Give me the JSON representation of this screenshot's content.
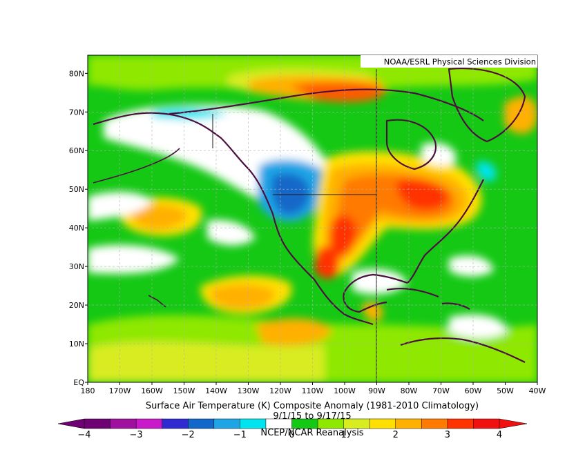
{
  "credit": "NOAA/ESRL Physical Sciences Division",
  "title_line1": "Surface Air Temperature (K) Composite Anomaly (1981-2010 Climatology)",
  "title_line2": "9/1/15 to 9/17/15",
  "title_line3": "NCEP/NCAR Reanalysis",
  "lat_ticks": [
    "80N",
    "70N",
    "60N",
    "50N",
    "40N",
    "30N",
    "20N",
    "10N",
    "EQ"
  ],
  "lon_ticks": [
    "180",
    "170W",
    "160W",
    "150W",
    "140W",
    "130W",
    "120W",
    "110W",
    "100W",
    "90W",
    "80W",
    "70W",
    "60W",
    "50W",
    "40W"
  ],
  "colorbar": {
    "colors": [
      "#6e0073",
      "#9f109f",
      "#c81ac8",
      "#2f2bd1",
      "#1268c8",
      "#1fa5e6",
      "#00e4ef",
      "#ffffff",
      "#14c814",
      "#8ee800",
      "#d9ec20",
      "#ffe000",
      "#ffb000",
      "#ff7a00",
      "#ff3300",
      "#f01010"
    ],
    "labels": [
      "−4",
      "−3",
      "−2",
      "−1",
      "0",
      "1",
      "2",
      "3",
      "4"
    ]
  },
  "colors": {
    "frame": "#000000",
    "coast": "#4b1040",
    "gridline": "#b0b0b0"
  }
}
